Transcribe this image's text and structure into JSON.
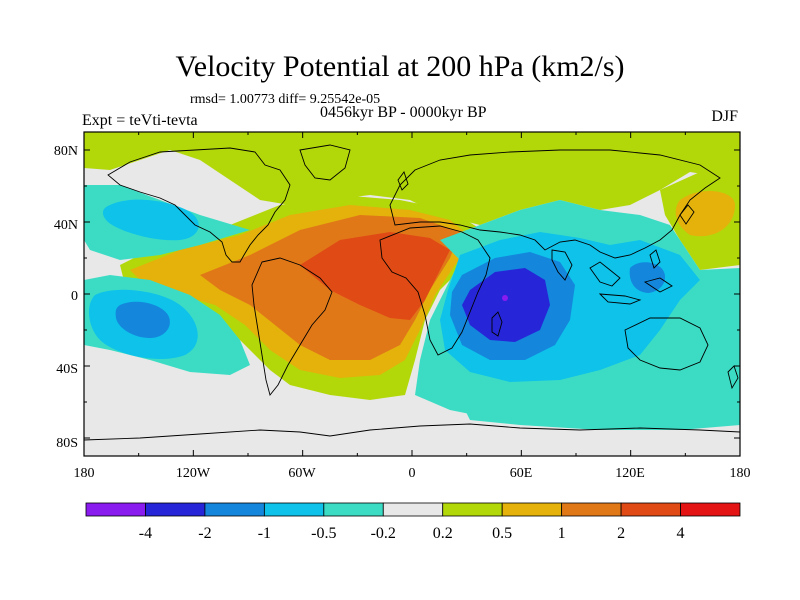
{
  "header": {
    "title": "Velocity Potential at 200 hPa (km2/s)",
    "stats": "rmsd= 1.00773 diff= 9.25542e-05",
    "experiment": "Expt = teVti-tevta",
    "period": "0456kyr BP - 0000kyr BP",
    "season": "DJF"
  },
  "axes": {
    "lat_labels": [
      "80N",
      "40N",
      "0",
      "40S",
      "80S"
    ],
    "lon_labels": [
      "180",
      "120W",
      "60W",
      "0",
      "60E",
      "120E",
      "180"
    ]
  },
  "colorbar": {
    "labels": [
      "-4",
      "-2",
      "-1",
      "-0.5",
      "-0.2",
      "0.2",
      "0.5",
      "1",
      "2",
      "4"
    ],
    "colors": [
      "#8a1cf0",
      "#2626d8",
      "#1486dc",
      "#0ec2ea",
      "#3cdcc4",
      "#e8e8e8",
      "#b2d80a",
      "#e4b20a",
      "#e07818",
      "#e04a14",
      "#e41414"
    ]
  },
  "map": {
    "projection": "cylindrical-equidistant",
    "background_color": "#e8e8e8",
    "coastline_color": "#000000"
  }
}
